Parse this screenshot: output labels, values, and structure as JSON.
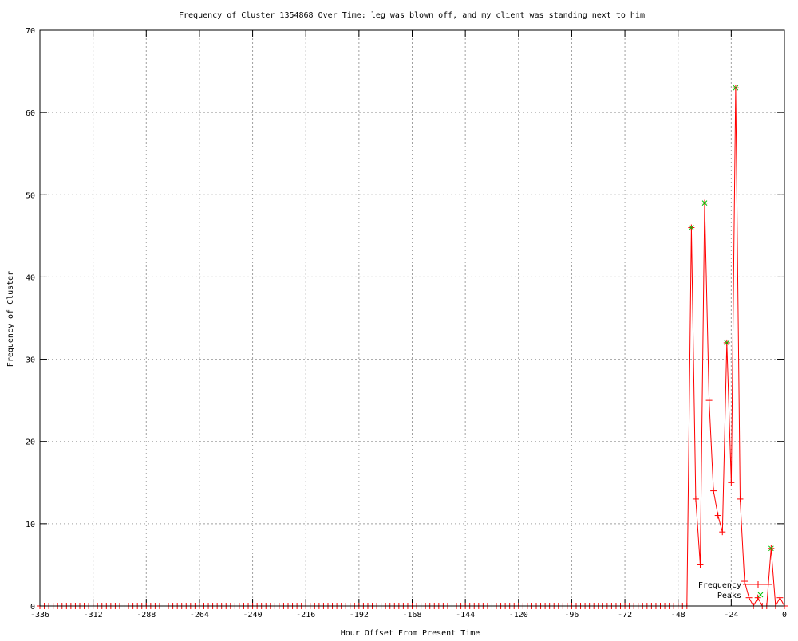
{
  "chart_data": {
    "type": "line",
    "title": "Frequency of Cluster 1354868 Over Time: leg was blown off, and my client was standing next to him",
    "xlabel": "Hour Offset From Present Time",
    "ylabel": "Frequency of Cluster",
    "xlim": [
      -336,
      0
    ],
    "ylim": [
      0,
      70
    ],
    "xticks": [
      -336,
      -312,
      -288,
      -264,
      -240,
      -216,
      -192,
      -168,
      -144,
      -120,
      -96,
      -72,
      -48,
      -24,
      0
    ],
    "yticks": [
      0,
      10,
      20,
      30,
      40,
      50,
      60,
      70
    ],
    "grid": true,
    "legend_placement": "bottom-right",
    "series": [
      {
        "name": "Frequency",
        "style": "linespoints",
        "color": "#ff0000",
        "x": [
          -336,
          -334,
          -332,
          -330,
          -328,
          -326,
          -324,
          -322,
          -320,
          -318,
          -316,
          -314,
          -312,
          -310,
          -308,
          -306,
          -304,
          -302,
          -300,
          -298,
          -296,
          -294,
          -292,
          -290,
          -288,
          -286,
          -284,
          -282,
          -280,
          -278,
          -276,
          -274,
          -272,
          -270,
          -268,
          -266,
          -264,
          -262,
          -260,
          -258,
          -256,
          -254,
          -252,
          -250,
          -248,
          -246,
          -244,
          -242,
          -240,
          -238,
          -236,
          -234,
          -232,
          -230,
          -228,
          -226,
          -224,
          -222,
          -220,
          -218,
          -216,
          -214,
          -212,
          -210,
          -208,
          -206,
          -204,
          -202,
          -200,
          -198,
          -196,
          -194,
          -192,
          -190,
          -188,
          -186,
          -184,
          -182,
          -180,
          -178,
          -176,
          -174,
          -172,
          -170,
          -168,
          -166,
          -164,
          -162,
          -160,
          -158,
          -156,
          -154,
          -152,
          -150,
          -148,
          -146,
          -144,
          -142,
          -140,
          -138,
          -136,
          -134,
          -132,
          -130,
          -128,
          -126,
          -124,
          -122,
          -120,
          -118,
          -116,
          -114,
          -112,
          -110,
          -108,
          -106,
          -104,
          -102,
          -100,
          -98,
          -96,
          -94,
          -92,
          -90,
          -88,
          -86,
          -84,
          -82,
          -80,
          -78,
          -76,
          -74,
          -72,
          -70,
          -68,
          -66,
          -64,
          -62,
          -60,
          -58,
          -56,
          -54,
          -52,
          -50,
          -48,
          -46,
          -44,
          -42,
          -40,
          -38,
          -36,
          -34,
          -32,
          -30,
          -28,
          -26,
          -24,
          -22,
          -20,
          -18,
          -16,
          -14,
          -12,
          -10,
          -8,
          -6,
          -4,
          -2,
          0
        ],
        "y": [
          0,
          0,
          0,
          0,
          0,
          0,
          0,
          0,
          0,
          0,
          0,
          0,
          0,
          0,
          0,
          0,
          0,
          0,
          0,
          0,
          0,
          0,
          0,
          0,
          0,
          0,
          0,
          0,
          0,
          0,
          0,
          0,
          0,
          0,
          0,
          0,
          0,
          0,
          0,
          0,
          0,
          0,
          0,
          0,
          0,
          0,
          0,
          0,
          0,
          0,
          0,
          0,
          0,
          0,
          0,
          0,
          0,
          0,
          0,
          0,
          0,
          0,
          0,
          0,
          0,
          0,
          0,
          0,
          0,
          0,
          0,
          0,
          0,
          0,
          0,
          0,
          0,
          0,
          0,
          0,
          0,
          0,
          0,
          0,
          0,
          0,
          0,
          0,
          0,
          0,
          0,
          0,
          0,
          0,
          0,
          0,
          0,
          0,
          0,
          0,
          0,
          0,
          0,
          0,
          0,
          0,
          0,
          0,
          0,
          0,
          0,
          0,
          0,
          0,
          0,
          0,
          0,
          0,
          0,
          0,
          0,
          0,
          0,
          0,
          0,
          0,
          0,
          0,
          0,
          0,
          0,
          0,
          0,
          0,
          0,
          0,
          0,
          0,
          0,
          0,
          0,
          0,
          0,
          0,
          0,
          0,
          0,
          46,
          13,
          5,
          49,
          25,
          14,
          11,
          9,
          32,
          15,
          63,
          13,
          3,
          1,
          0,
          1,
          0,
          0,
          7,
          0,
          1,
          0
        ]
      },
      {
        "name": "Peaks",
        "style": "points",
        "color": "#00c000",
        "x": [
          -42,
          -36,
          -26,
          -22,
          -6
        ],
        "y": [
          46,
          49,
          32,
          63,
          7
        ]
      }
    ]
  }
}
